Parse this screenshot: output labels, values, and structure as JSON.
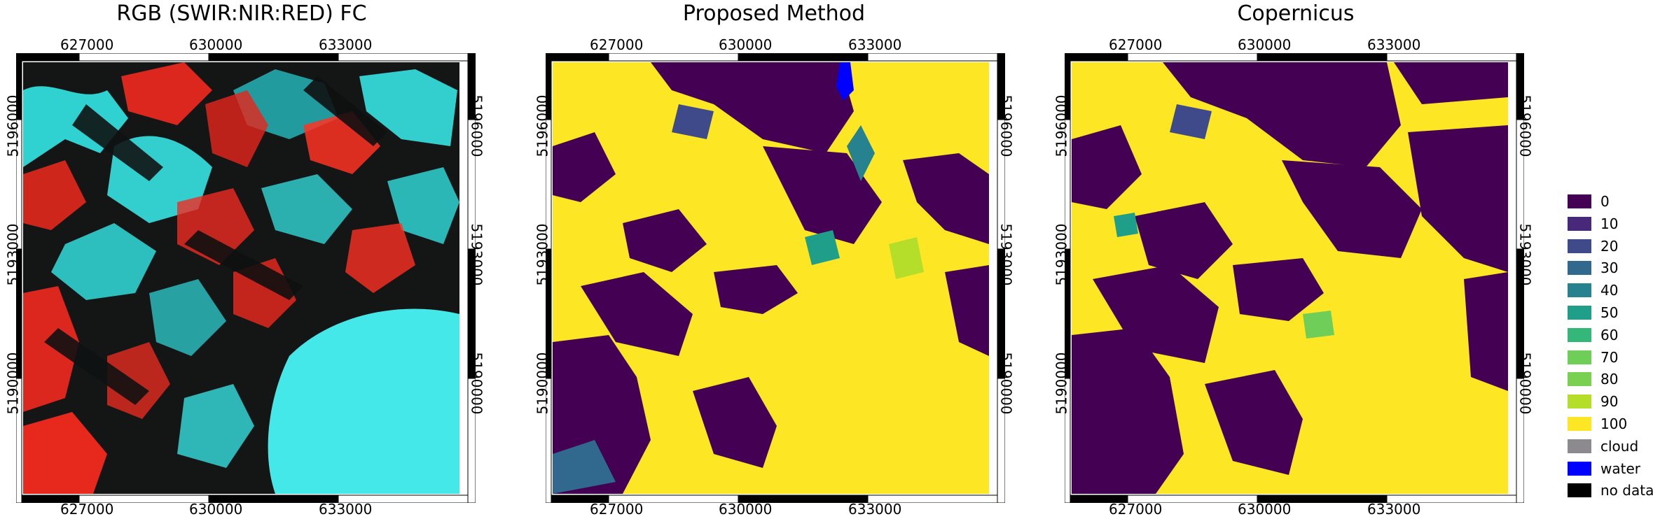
{
  "panels": [
    {
      "title": "RGB (SWIR:NIR:RED) FC",
      "x_ticks": [
        "627000",
        "630000",
        "633000"
      ],
      "y_ticks": [
        "5196000",
        "5193000",
        "5190000"
      ]
    },
    {
      "title": "Proposed Method",
      "x_ticks": [
        "627000",
        "630000",
        "633000"
      ],
      "y_ticks": [
        "5196000",
        "5193000",
        "5190000"
      ]
    },
    {
      "title": "Copernicus",
      "x_ticks": [
        "627000",
        "630000",
        "633000"
      ],
      "y_ticks": [
        "5196000",
        "5193000",
        "5190000"
      ]
    }
  ],
  "legend": {
    "items": [
      {
        "label": "0",
        "color": "#440154"
      },
      {
        "label": "10",
        "color": "#482878"
      },
      {
        "label": "20",
        "color": "#3e4a89"
      },
      {
        "label": "30",
        "color": "#31688e"
      },
      {
        "label": "40",
        "color": "#26828e"
      },
      {
        "label": "50",
        "color": "#1f9e89"
      },
      {
        "label": "60",
        "color": "#35b779"
      },
      {
        "label": "70",
        "color": "#6ece58"
      },
      {
        "label": "80",
        "color": "#7ad151"
      },
      {
        "label": "90",
        "color": "#b5de2b"
      },
      {
        "label": "100",
        "color": "#fde725"
      },
      {
        "label": "cloud",
        "color": "#8c8a8f"
      },
      {
        "label": "water",
        "color": "#0000ff"
      },
      {
        "label": "no data",
        "color": "#000000"
      }
    ]
  },
  "colors": {
    "rgb_red": "#ff2a1e",
    "rgb_cyan": "#3af0f0",
    "rgb_dark": "#0f1111",
    "snow_yellow": "#fde725",
    "bare_purple": "#440154"
  }
}
